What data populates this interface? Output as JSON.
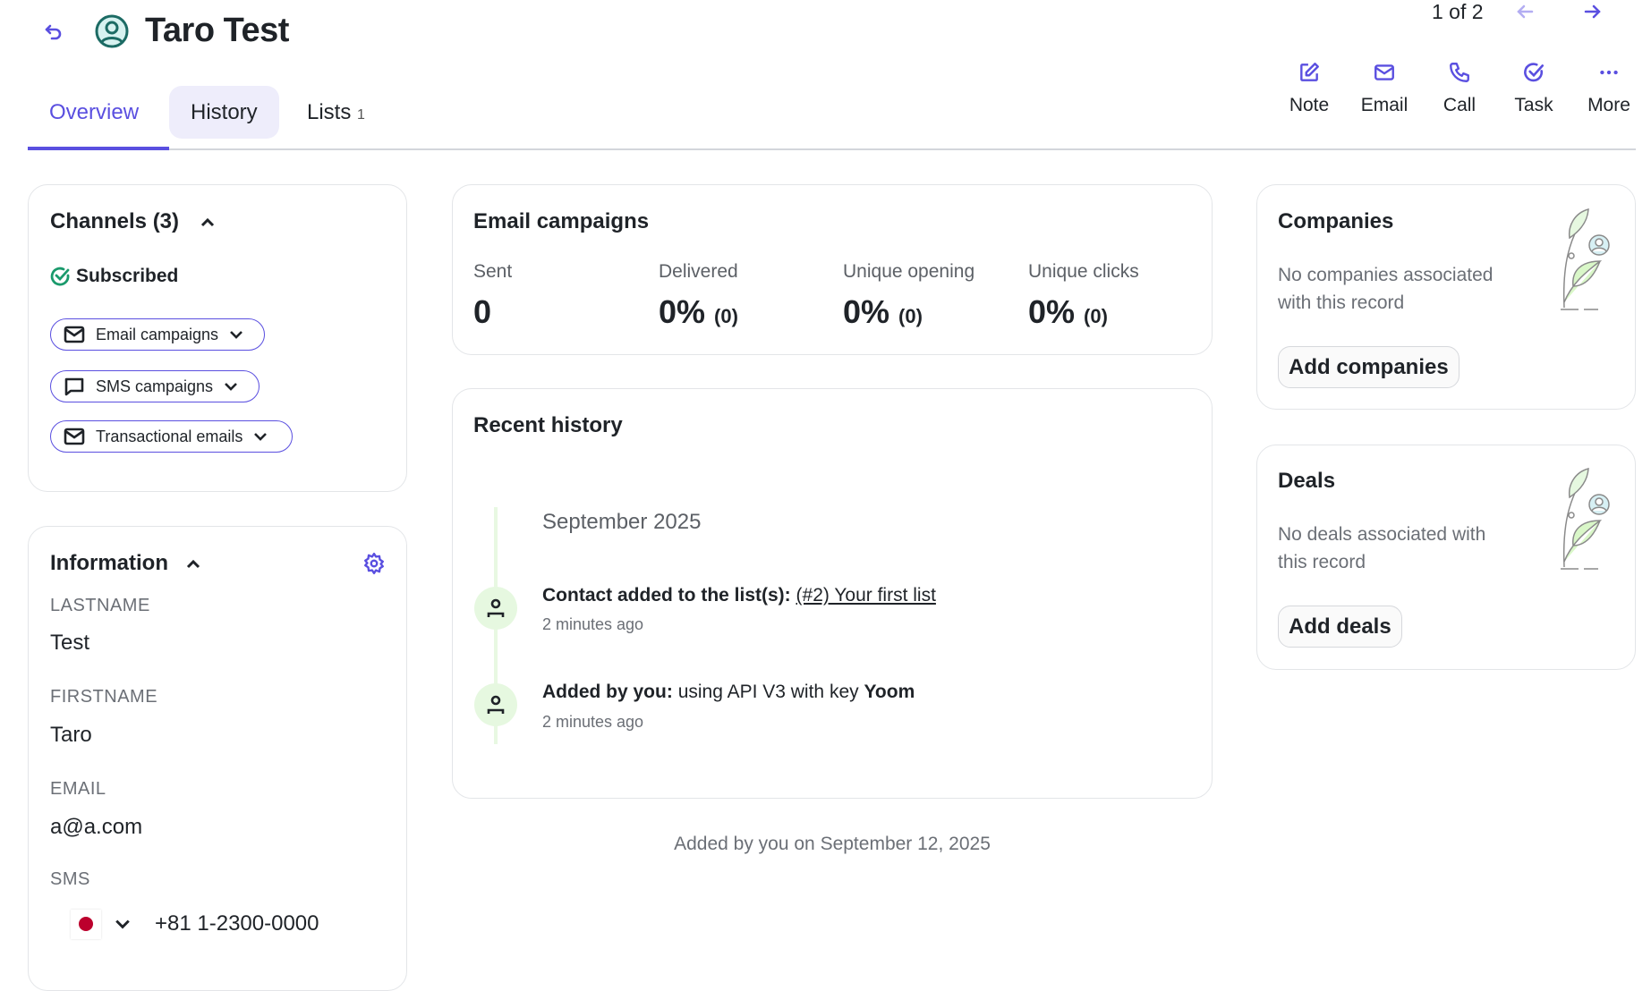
{
  "header": {
    "title": "Taro Test",
    "pager": "1 of 2",
    "back_icon": "undo-arrow-icon",
    "avatar_icon": "user-circle-icon"
  },
  "tabs": [
    {
      "label": "Overview",
      "active": true
    },
    {
      "label": "History"
    },
    {
      "label": "Lists",
      "count": "1"
    }
  ],
  "actions": [
    {
      "label": "Note",
      "icon": "edit-icon"
    },
    {
      "label": "Email",
      "icon": "mail-icon"
    },
    {
      "label": "Call",
      "icon": "phone-icon"
    },
    {
      "label": "Task",
      "icon": "check-circle-icon"
    },
    {
      "label": "More",
      "icon": "more-dots-icon"
    }
  ],
  "accent": "#5a4fe0",
  "channels": {
    "title": "Channels (3)",
    "status": "Subscribed",
    "items": [
      {
        "label": "Email campaigns",
        "icon": "mail-icon"
      },
      {
        "label": "SMS campaigns",
        "icon": "chat-icon"
      },
      {
        "label": "Transactional emails",
        "icon": "mail-icon"
      }
    ]
  },
  "information": {
    "title": "Information",
    "fields": [
      {
        "label": "LASTNAME",
        "value": "Test"
      },
      {
        "label": "FIRSTNAME",
        "value": "Taro"
      },
      {
        "label": "EMAIL",
        "value": "a@a.com"
      },
      {
        "label": "SMS",
        "value": "+81 1-2300-0000"
      }
    ]
  },
  "email_campaigns": {
    "title": "Email campaigns",
    "stats": [
      {
        "label": "Sent",
        "value": "0",
        "count": ""
      },
      {
        "label": "Delivered",
        "value": "0%",
        "count": "(0)"
      },
      {
        "label": "Unique opening",
        "value": "0%",
        "count": "(0)"
      },
      {
        "label": "Unique clicks",
        "value": "0%",
        "count": "(0)"
      }
    ]
  },
  "recent_history": {
    "title": "Recent history",
    "month": "September 2025",
    "items": [
      {
        "bold": "Contact added to the list(s):",
        "text": "",
        "link": "(#2) Your first list",
        "bold2": "",
        "time": "2 minutes ago"
      },
      {
        "bold": "Added by you:",
        "text": "using API V3 with key",
        "link": "",
        "bold2": "Yoom",
        "time": "2 minutes ago"
      }
    ]
  },
  "footer_note": "Added by you on September 12, 2025",
  "companies": {
    "title": "Companies",
    "empty": "No companies associated with this record",
    "empty_l1": "No companies associated",
    "empty_l2": "with this record",
    "button": "Add companies"
  },
  "deals": {
    "title": "Deals",
    "empty_l1": "No deals associated with",
    "empty_l2": "this record",
    "button": "Add deals"
  }
}
